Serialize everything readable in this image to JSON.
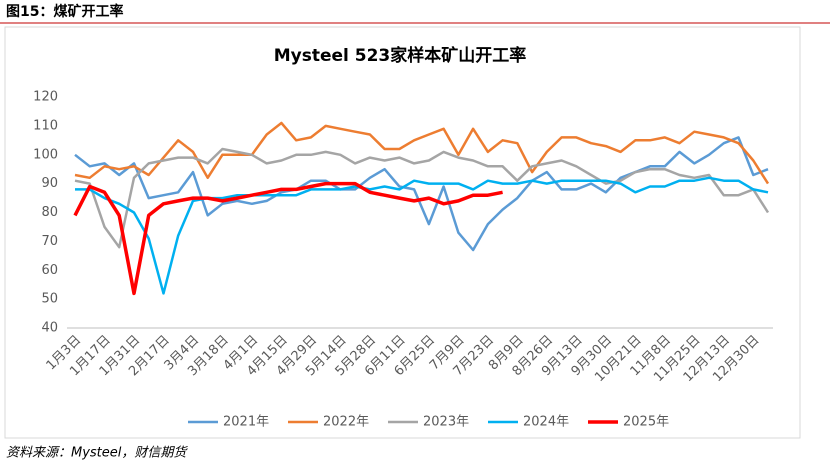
{
  "figure_title": "图15：煤矿开工率",
  "source": "资料来源：Mysteel，财信期货",
  "chart_data": {
    "type": "line",
    "title": "Mysteel 523家样本矿山开工率",
    "categories": [
      "1月3日",
      null,
      "1月17日",
      null,
      "1月31日",
      null,
      "2月17日",
      null,
      "3月4日",
      null,
      "3月18日",
      null,
      "4月1日",
      null,
      "4月15日",
      null,
      "4月29日",
      null,
      "5月14日",
      null,
      "5月28日",
      null,
      "6月11日",
      null,
      "6月25日",
      null,
      "7月9日",
      null,
      "7月23日",
      null,
      "8月9日",
      null,
      "8月26日",
      null,
      "9月13日",
      null,
      "9月30日",
      null,
      "10月21日",
      null,
      "11月8日",
      null,
      "11月25日",
      null,
      "12月13日",
      null,
      "12月30日",
      null
    ],
    "ylim": [
      40,
      120
    ],
    "yticks": [
      40,
      50,
      60,
      70,
      80,
      90,
      100,
      110,
      120
    ],
    "grid": false,
    "legend": "bottom",
    "series": [
      {
        "name": "2021年",
        "color": "#5b9bd5",
        "values": [
          100,
          96,
          97,
          93,
          97,
          85,
          86,
          87,
          94,
          79,
          83,
          84,
          83,
          84,
          87,
          88,
          91,
          91,
          88,
          88,
          92,
          95,
          89,
          88,
          76,
          89,
          73,
          67,
          76,
          81,
          85,
          91,
          94,
          88,
          88,
          90,
          87,
          92,
          94,
          96,
          96,
          101,
          97,
          100,
          104,
          106,
          93,
          95
        ]
      },
      {
        "name": "2022年",
        "color": "#ed7d31",
        "values": [
          93,
          92,
          96,
          95,
          96,
          93,
          99,
          105,
          101,
          92,
          100,
          100,
          100,
          107,
          111,
          105,
          106,
          110,
          109,
          108,
          107,
          102,
          102,
          105,
          107,
          109,
          100,
          109,
          101,
          105,
          104,
          94,
          101,
          106,
          106,
          104,
          103,
          101,
          105,
          105,
          106,
          104,
          108,
          107,
          106,
          104,
          98,
          90
        ]
      },
      {
        "name": "2023年",
        "color": "#a5a5a5",
        "values": [
          91,
          90,
          75,
          68,
          92,
          97,
          98,
          99,
          99,
          97,
          102,
          101,
          100,
          97,
          98,
          100,
          100,
          101,
          100,
          97,
          99,
          98,
          99,
          97,
          98,
          101,
          99,
          98,
          96,
          96,
          91,
          96,
          97,
          98,
          96,
          93,
          90,
          91,
          94,
          95,
          95,
          93,
          92,
          93,
          86,
          86,
          88,
          80
        ]
      },
      {
        "name": "2024年",
        "color": "#00b0f0",
        "values": [
          88,
          88,
          85,
          83,
          80,
          71,
          52,
          72,
          84,
          85,
          85,
          86,
          86,
          86,
          86,
          86,
          88,
          88,
          88,
          89,
          88,
          89,
          88,
          91,
          90,
          90,
          90,
          88,
          91,
          90,
          90,
          91,
          90,
          91,
          91,
          91,
          91,
          90,
          87,
          89,
          89,
          91,
          91,
          92,
          91,
          91,
          88,
          87
        ]
      },
      {
        "name": "2025年",
        "color": "#ff0000",
        "values": [
          79,
          89,
          87,
          79,
          52,
          79,
          83,
          84,
          85,
          85,
          84,
          85,
          86,
          87,
          88,
          88,
          89,
          90,
          90,
          90,
          87,
          86,
          85,
          84,
          85,
          83,
          84,
          86,
          86,
          87,
          null,
          null,
          null,
          null,
          null,
          null,
          null,
          null,
          null,
          null,
          null,
          null,
          null,
          null,
          null,
          null,
          null,
          null
        ]
      }
    ]
  }
}
